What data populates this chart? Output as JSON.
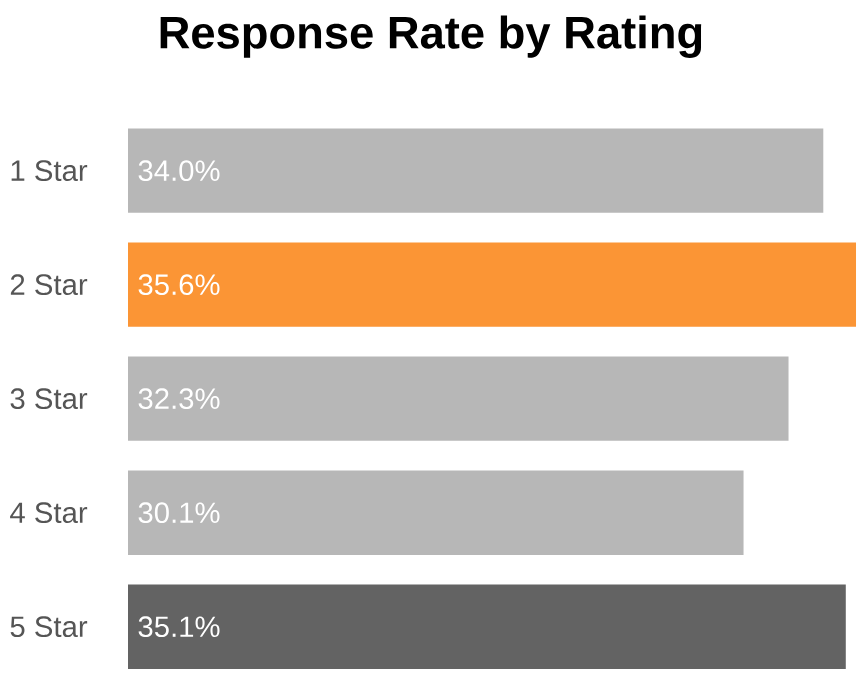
{
  "chart_data": {
    "type": "bar",
    "orientation": "horizontal",
    "title": "Response Rate by Rating",
    "categories": [
      "1 Star",
      "2 Star",
      "3 Star",
      "4 Star",
      "5 Star"
    ],
    "values": [
      34.0,
      35.6,
      32.3,
      30.1,
      35.1
    ],
    "colors": [
      "#b7b7b7",
      "#fb9535",
      "#b7b7b7",
      "#b7b7b7",
      "#636363"
    ],
    "value_labels": [
      "34.0%",
      "35.6%",
      "32.3%",
      "30.1%",
      "35.1%"
    ]
  }
}
